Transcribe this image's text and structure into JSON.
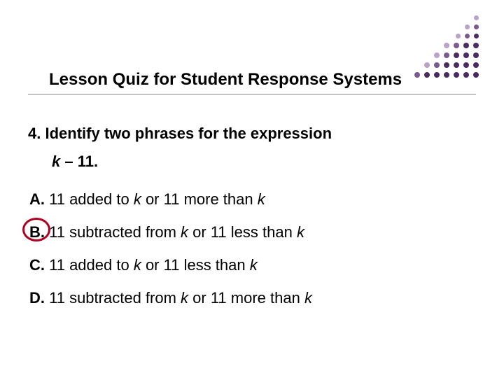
{
  "title": "Lesson Quiz for Student Response Systems",
  "question": {
    "number": "4.",
    "prompt": "Identify two phrases for the expression",
    "variable": "k",
    "expr_rest": " – 11."
  },
  "options": [
    {
      "label": "A.",
      "pre": "11 added to ",
      "var1": "k",
      "mid": " or 11 more than ",
      "var2": "k",
      "correct": false
    },
    {
      "label": "B.",
      "pre": "11 subtracted from ",
      "var1": "k",
      "mid": " or 11 less than ",
      "var2": "k",
      "correct": true
    },
    {
      "label": "C.",
      "pre": "11 added to ",
      "var1": "k",
      "mid": " or 11 less than ",
      "var2": "k",
      "correct": false
    },
    {
      "label": "D.",
      "pre": "11 subtracted from ",
      "var1": "k",
      "mid": " or 11 more than ",
      "var2": "k",
      "correct": false
    }
  ],
  "dots": {
    "colors": {
      "dark": "#4a2b5f",
      "mid": "#7a5a8f",
      "light": "#b9a3c9"
    }
  },
  "circle_color": "#b00020"
}
